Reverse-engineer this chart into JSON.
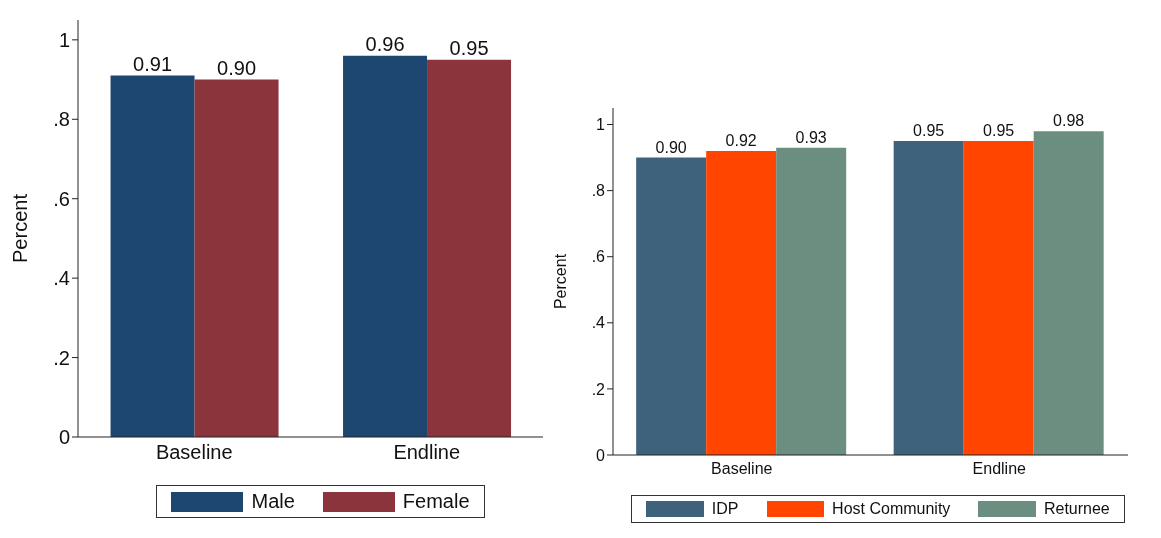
{
  "chart_data": [
    {
      "type": "bar",
      "ylabel": "Percent",
      "categories": [
        "Baseline",
        "Endline"
      ],
      "ylim": [
        0,
        1.05
      ],
      "yticks": [
        {
          "value": 0,
          "label": "0"
        },
        {
          "value": 0.2,
          "label": ".2"
        },
        {
          "value": 0.4,
          "label": ".4"
        },
        {
          "value": 0.6,
          "label": ".6"
        },
        {
          "value": 0.8,
          "label": ".8"
        },
        {
          "value": 1,
          "label": "1"
        }
      ],
      "grid": false,
      "legend": "bottom",
      "series": [
        {
          "name": "Male",
          "color": "#1d4670",
          "values": [
            0.91,
            0.96
          ],
          "value_labels": [
            "0.91",
            "0.96"
          ]
        },
        {
          "name": "Female",
          "color": "#8b343c",
          "values": [
            0.9,
            0.95
          ],
          "value_labels": [
            "0.90",
            "0.95"
          ]
        }
      ]
    },
    {
      "type": "bar",
      "ylabel": "Percent",
      "categories": [
        "Baseline",
        "Endline"
      ],
      "ylim": [
        0,
        1.05
      ],
      "yticks": [
        {
          "value": 0,
          "label": "0"
        },
        {
          "value": 0.2,
          "label": ".2"
        },
        {
          "value": 0.4,
          "label": ".4"
        },
        {
          "value": 0.6,
          "label": ".6"
        },
        {
          "value": 0.8,
          "label": ".8"
        },
        {
          "value": 1,
          "label": "1"
        }
      ],
      "grid": false,
      "legend": "bottom",
      "series": [
        {
          "name": "IDP",
          "color": "#3e627c",
          "values": [
            0.9,
            0.95
          ],
          "value_labels": [
            "0.90",
            "0.95"
          ]
        },
        {
          "name": "Host Community",
          "color": "#ff4500",
          "values": [
            0.92,
            0.95
          ],
          "value_labels": [
            "0.92",
            "0.95"
          ]
        },
        {
          "name": "Returnee",
          "color": "#6b8e80",
          "values": [
            0.93,
            0.98
          ],
          "value_labels": [
            "0.93",
            "0.98"
          ]
        }
      ]
    }
  ]
}
